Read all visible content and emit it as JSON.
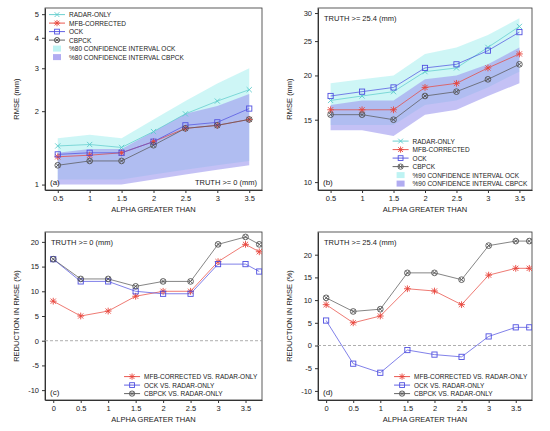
{
  "chart_data": [
    {
      "type": "line",
      "x_label": "ALPHA GREATER THAN",
      "y_label": "RMSE (mm)",
      "annotations": [
        "(a)",
        "TRUTH >= 0 (mm)"
      ],
      "log": "y",
      "legend": "top-left",
      "x": [
        0.5,
        1,
        1.5,
        2,
        2.5,
        3,
        3.5
      ],
      "xlim": [
        0.3,
        3.7
      ],
      "xticks": [
        0.5,
        1,
        1.5,
        2,
        2.5,
        3,
        3.5
      ],
      "ylim": [
        0.95,
        5.3
      ],
      "yticks": [
        1,
        2,
        3,
        4,
        5
      ],
      "series": [
        {
          "name": "RADAR-ONLY",
          "color": "#5ccccc",
          "marker": "x",
          "values": [
            1.44,
            1.46,
            1.42,
            1.65,
            1.95,
            2.2,
            2.45
          ]
        },
        {
          "name": "MFB-CORRECTED",
          "color": "#e8453c",
          "marker": "asterisk",
          "values": [
            1.3,
            1.32,
            1.35,
            1.5,
            1.7,
            1.75,
            1.85
          ]
        },
        {
          "name": "OCK",
          "color": "#5050e0",
          "marker": "square",
          "values": [
            1.33,
            1.35,
            1.35,
            1.5,
            1.75,
            1.8,
            2.05
          ]
        },
        {
          "name": "CBPCK",
          "color": "#555555",
          "marker": "circle-x",
          "values": [
            1.2,
            1.25,
            1.25,
            1.45,
            1.7,
            1.75,
            1.85
          ]
        },
        {
          "name": "%80 CONFIDENCE INTERVAL OCK",
          "type": "area",
          "color": "#aef0f0",
          "lower": [
            1.05,
            1.05,
            1.05,
            1.1,
            1.15,
            1.2,
            1.25
          ],
          "upper": [
            1.55,
            1.6,
            1.55,
            1.85,
            2.2,
            2.6,
            3.0
          ]
        },
        {
          "name": "%80 CONFIDENCE INTERVAL CBPCK",
          "type": "area",
          "color": "#9d97ee",
          "lower": [
            1.0,
            1.0,
            1.0,
            1.05,
            1.1,
            1.15,
            1.2
          ],
          "upper": [
            1.35,
            1.4,
            1.4,
            1.65,
            1.95,
            2.1,
            2.35
          ]
        }
      ]
    },
    {
      "type": "line",
      "x_label": "ALPHA GREATER THAN",
      "y_label": "RMSE (mm)",
      "annotations": [
        "(b)",
        "TRUTH >= 25.4 (mm)"
      ],
      "log": "y",
      "legend": "bottom-right",
      "x": [
        0.5,
        1,
        1.5,
        2,
        2.5,
        3,
        3.5
      ],
      "xlim": [
        0.3,
        3.7
      ],
      "xticks": [
        0.5,
        1,
        1.5,
        2,
        2.5,
        3,
        3.5
      ],
      "ylim": [
        9.5,
        31
      ],
      "yticks": [
        10,
        15,
        20,
        25,
        30
      ],
      "series": [
        {
          "name": "RADAR-ONLY",
          "color": "#5ccccc",
          "marker": "x",
          "values": [
            17,
            17.5,
            18,
            20.5,
            21,
            24,
            27.5
          ]
        },
        {
          "name": "MFB-CORRECTED",
          "color": "#e8453c",
          "marker": "asterisk",
          "values": [
            16,
            16,
            16,
            18.5,
            19,
            21,
            23
          ]
        },
        {
          "name": "OCK",
          "color": "#5050e0",
          "marker": "square",
          "values": [
            17.5,
            18,
            18.5,
            21,
            21.5,
            23.5,
            26.5
          ]
        },
        {
          "name": "CBPCK",
          "color": "#555555",
          "marker": "circle-x",
          "values": [
            15.5,
            15.5,
            15,
            17.5,
            18,
            19.5,
            21.5
          ]
        },
        {
          "name": "%90 CONFIDENCE INTERVAL OCK",
          "type": "area",
          "color": "#aef0f0",
          "lower": [
            14.5,
            14.5,
            14.5,
            16.5,
            17,
            18.5,
            20.5
          ],
          "upper": [
            19,
            19.5,
            20,
            23,
            24,
            26,
            29
          ]
        },
        {
          "name": "%90 CONFIDENCE INTERVAL CBPCK",
          "type": "area",
          "color": "#9d97ee",
          "lower": [
            14,
            14,
            13.5,
            15.5,
            16,
            17.5,
            19
          ],
          "upper": [
            16.5,
            17,
            17,
            19.5,
            20,
            21.5,
            24
          ]
        }
      ]
    },
    {
      "type": "line",
      "x_label": "ALPHA GREATER THAN",
      "y_label": "REDUCTION IN RMSE (%)",
      "annotations": [
        "(c)",
        "TRUTH >= 0 (mm)"
      ],
      "legend": "bottom-right",
      "x": [
        0,
        0.5,
        1,
        1.5,
        2,
        2.5,
        3,
        3.5,
        3.75
      ],
      "xlim": [
        -0.15,
        3.8
      ],
      "xticks": [
        0,
        0.5,
        1,
        1.5,
        2,
        2.5,
        3,
        3.5
      ],
      "ylim": [
        -12,
        22
      ],
      "yticks": [
        -10,
        -5,
        0,
        5,
        10,
        15,
        20
      ],
      "reference_lines": [
        0
      ],
      "series": [
        {
          "name": "MFB-CORRECTED VS. RADAR-ONLY",
          "color": "#e8453c",
          "marker": "asterisk",
          "values": [
            8,
            5,
            6,
            9,
            10,
            10,
            16,
            19.5,
            18
          ]
        },
        {
          "name": "OCK VS. RADAR-ONLY",
          "color": "#5050e0",
          "marker": "square",
          "values": [
            16.5,
            12,
            12,
            10,
            9.5,
            9.5,
            15.5,
            15.5,
            14
          ]
        },
        {
          "name": "CBPCK VS. RADAR-ONLY",
          "color": "#555555",
          "marker": "circle-x",
          "values": [
            16.5,
            12.5,
            12.5,
            11,
            12,
            12,
            19.5,
            21,
            19.5
          ]
        }
      ]
    },
    {
      "type": "line",
      "x_label": "ALPHA GREATER THAN",
      "y_label": "REDUCTION IN RMSE (%)",
      "annotations": [
        "(d)",
        "TRUTH >= 25.4 (mm)"
      ],
      "legend": "bottom-right",
      "x": [
        0,
        0.5,
        1,
        1.5,
        2,
        2.5,
        3,
        3.5,
        3.75
      ],
      "xlim": [
        -0.15,
        3.8
      ],
      "xticks": [
        0,
        0.5,
        1,
        1.5,
        2,
        2.5,
        3,
        3.5
      ],
      "ylim": [
        -12,
        25
      ],
      "yticks": [
        -10,
        -5,
        0,
        5,
        10,
        15,
        20
      ],
      "reference_lines": [
        0
      ],
      "series": [
        {
          "name": "MFB-CORRECTED VS. RADAR-ONLY",
          "color": "#e8453c",
          "marker": "asterisk",
          "values": [
            9,
            5,
            6.5,
            12.5,
            12,
            9,
            15.5,
            17,
            17
          ]
        },
        {
          "name": "OCK VS. RADAR-ONLY",
          "color": "#5050e0",
          "marker": "square",
          "values": [
            5.5,
            -4,
            -6,
            -1,
            -2,
            -2.5,
            2,
            4,
            4
          ]
        },
        {
          "name": "CBPCK VS. RADAR-ONLY",
          "color": "#555555",
          "marker": "circle-x",
          "values": [
            10.5,
            7.5,
            8,
            16,
            16,
            14.5,
            22,
            23,
            23
          ]
        }
      ]
    }
  ]
}
